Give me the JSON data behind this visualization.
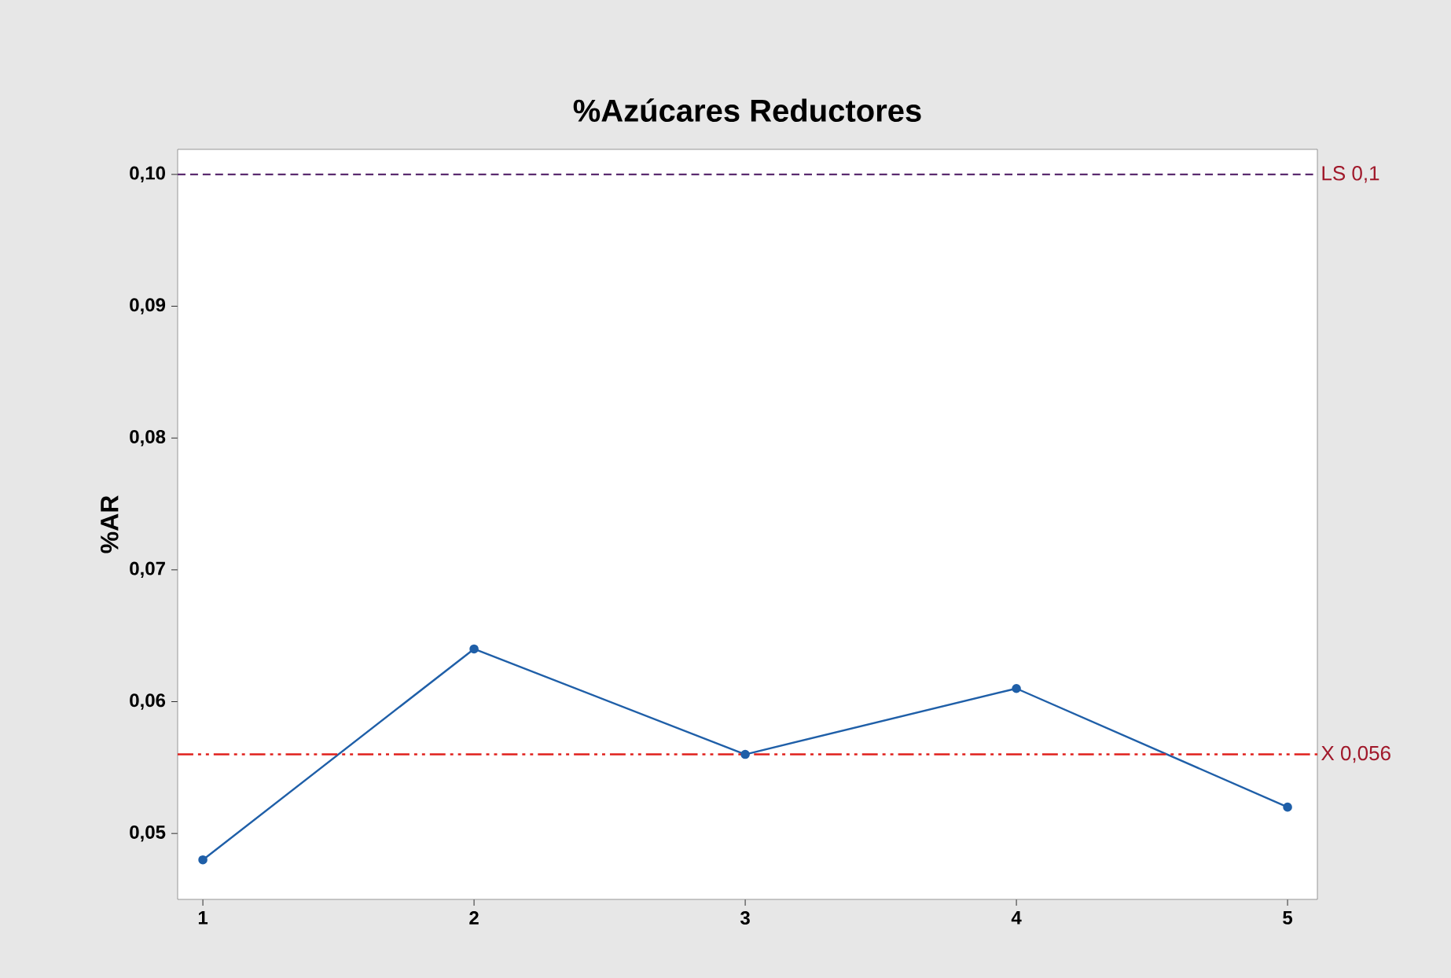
{
  "chart_data": {
    "type": "line",
    "title": "%Azúcares Reductores",
    "ylabel": "%AR",
    "x": [
      1,
      2,
      3,
      4,
      5
    ],
    "series": [
      {
        "color": "#1f5fa8",
        "values": [
          0.048,
          0.064,
          0.056,
          0.061,
          0.052
        ]
      }
    ],
    "xlim": [
      0.907,
      5.11
    ],
    "xticks": [
      1,
      2,
      3,
      4,
      5
    ],
    "ylim": [
      0.045,
      0.1019
    ],
    "yticks": [
      {
        "value": 0.05,
        "label": "0,05"
      },
      {
        "value": 0.06,
        "label": "0,06"
      },
      {
        "value": 0.07,
        "label": "0,07"
      },
      {
        "value": 0.08,
        "label": "0,08"
      },
      {
        "value": 0.09,
        "label": "0,09"
      },
      {
        "value": 0.1,
        "label": "0,10"
      }
    ],
    "ref_lines": [
      {
        "axis": "y",
        "value": 0.1,
        "label": "LS 0,1",
        "color": "#5b2c6f",
        "line_style": "dashed"
      },
      {
        "axis": "y",
        "value": 0.056,
        "label": "X 0,056",
        "color": "#e0201c",
        "line_style": "dashdotdotted"
      }
    ],
    "marker": "circle",
    "line_style": "solid",
    "grid": false
  }
}
